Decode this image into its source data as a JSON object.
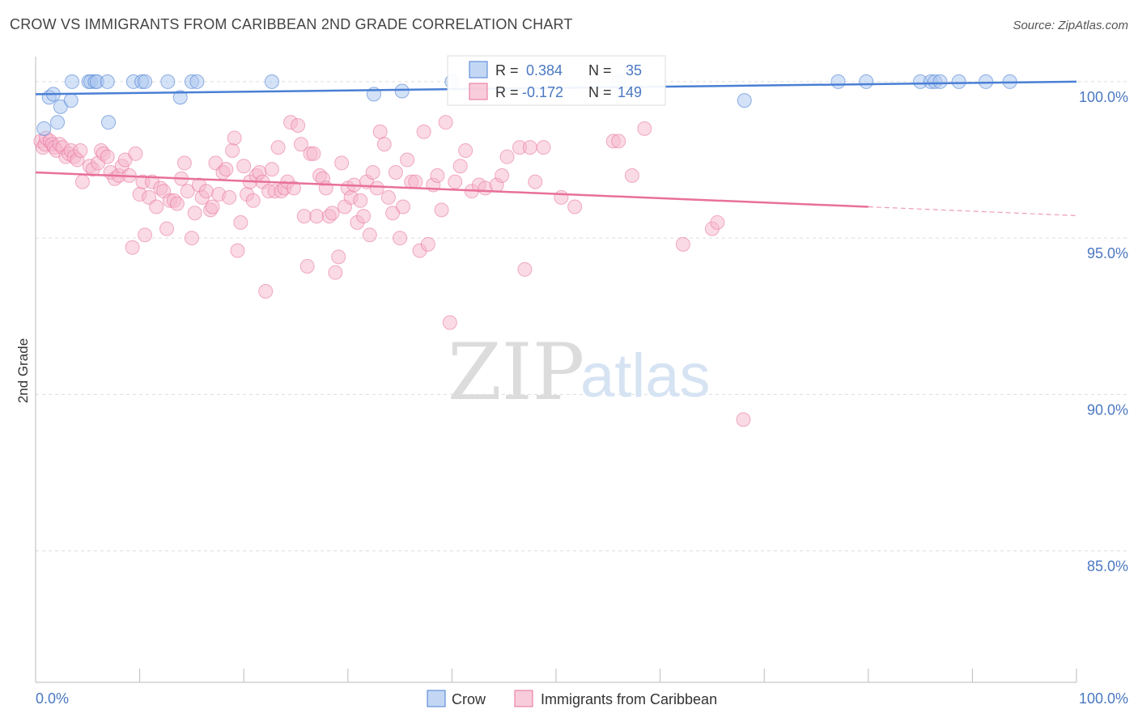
{
  "title": "CROW VS IMMIGRANTS FROM CARIBBEAN 2ND GRADE CORRELATION CHART",
  "source": "Source: ZipAtlas.com",
  "watermark": {
    "zip": "ZIP",
    "atlas": "atlas"
  },
  "colors": {
    "crow": "#4a7fd4",
    "crow_fill": "#a9c6ef",
    "caribbean": "#e8709a",
    "caribbean_fill": "#f5b6cc",
    "tick": "#4a78c2"
  },
  "stats": [
    {
      "r_label": "R =",
      "r": "0.384",
      "n_label": "N =",
      "n": "35"
    },
    {
      "r_label": "R =",
      "r": "-0.172",
      "n_label": "N =",
      "n": "149"
    }
  ],
  "chart_data": {
    "type": "scatter",
    "title": "CROW VS IMMIGRANTS FROM CARIBBEAN 2ND GRADE CORRELATION CHART",
    "xlabel": "",
    "ylabel": "2nd Grade",
    "xlim": [
      0,
      100
    ],
    "ylim": [
      80.8,
      100.8
    ],
    "x_tick_labels": [
      "0.0%",
      "100.0%"
    ],
    "y_ticks": [
      100,
      95,
      90,
      85
    ],
    "y_tick_labels": [
      "100.0%",
      "95.0%",
      "90.0%",
      "85.0%"
    ],
    "legend": [
      "Crow",
      "Immigrants from Caribbean"
    ],
    "series": [
      {
        "name": "Crow",
        "r": 0.384,
        "n": 35,
        "trend": {
          "x": [
            0,
            100
          ],
          "y": [
            99.6,
            100.0
          ]
        },
        "points": [
          [
            0.8,
            98.5
          ],
          [
            1.3,
            99.5
          ],
          [
            1.7,
            99.6
          ],
          [
            2.1,
            98.7
          ],
          [
            2.4,
            99.2
          ],
          [
            3.4,
            99.4
          ],
          [
            3.5,
            100.0
          ],
          [
            5.1,
            100.0
          ],
          [
            5.3,
            100.0
          ],
          [
            5.7,
            100.0
          ],
          [
            5.9,
            100.0
          ],
          [
            6.9,
            100.0
          ],
          [
            7.0,
            98.7
          ],
          [
            9.4,
            100.0
          ],
          [
            10.2,
            100.0
          ],
          [
            10.5,
            100.0
          ],
          [
            12.7,
            100.0
          ],
          [
            13.9,
            99.5
          ],
          [
            15.0,
            100.0
          ],
          [
            15.5,
            100.0
          ],
          [
            22.7,
            100.0
          ],
          [
            32.5,
            99.6
          ],
          [
            35.2,
            99.7
          ],
          [
            40.0,
            100.0
          ],
          [
            56.0,
            100.0
          ],
          [
            68.1,
            99.4
          ],
          [
            77.1,
            100.0
          ],
          [
            79.8,
            100.0
          ],
          [
            85.0,
            100.0
          ],
          [
            86.0,
            100.0
          ],
          [
            86.4,
            100.0
          ],
          [
            86.9,
            100.0
          ],
          [
            88.7,
            100.0
          ],
          [
            91.3,
            100.0
          ],
          [
            93.6,
            100.0
          ]
        ]
      },
      {
        "name": "Immigrants from Caribbean",
        "r": -0.172,
        "n": 149,
        "trend": {
          "x": [
            0,
            80
          ],
          "y": [
            97.1,
            96.0
          ]
        },
        "trend_dashed": {
          "x": [
            80,
            100
          ],
          "y": [
            96.0,
            95.72
          ]
        },
        "points": [
          [
            0.5,
            98.1
          ],
          [
            0.7,
            97.9
          ],
          [
            0.9,
            98.0
          ],
          [
            1.0,
            98.2
          ],
          [
            1.4,
            98.1
          ],
          [
            1.6,
            98.0
          ],
          [
            1.8,
            97.9
          ],
          [
            2.0,
            97.8
          ],
          [
            2.3,
            98.0
          ],
          [
            2.6,
            97.9
          ],
          [
            2.9,
            97.6
          ],
          [
            3.2,
            97.7
          ],
          [
            3.4,
            97.8
          ],
          [
            3.7,
            97.6
          ],
          [
            4.0,
            97.5
          ],
          [
            4.3,
            97.8
          ],
          [
            4.5,
            96.8
          ],
          [
            5.2,
            97.3
          ],
          [
            5.5,
            97.2
          ],
          [
            6.0,
            97.4
          ],
          [
            6.3,
            97.8
          ],
          [
            6.5,
            97.7
          ],
          [
            6.9,
            97.6
          ],
          [
            7.2,
            97.1
          ],
          [
            7.6,
            96.9
          ],
          [
            8.0,
            97.0
          ],
          [
            8.3,
            97.3
          ],
          [
            8.6,
            97.5
          ],
          [
            9.0,
            97.0
          ],
          [
            9.3,
            94.7
          ],
          [
            9.6,
            97.7
          ],
          [
            10.0,
            96.4
          ],
          [
            10.3,
            96.8
          ],
          [
            10.5,
            95.1
          ],
          [
            10.9,
            96.3
          ],
          [
            11.2,
            96.8
          ],
          [
            11.6,
            96.0
          ],
          [
            12.0,
            96.6
          ],
          [
            12.3,
            96.5
          ],
          [
            12.6,
            95.3
          ],
          [
            12.9,
            96.2
          ],
          [
            13.3,
            96.2
          ],
          [
            13.6,
            96.1
          ],
          [
            14.0,
            96.9
          ],
          [
            14.3,
            97.4
          ],
          [
            14.6,
            96.5
          ],
          [
            15.0,
            95.0
          ],
          [
            15.3,
            95.8
          ],
          [
            15.7,
            96.7
          ],
          [
            16.0,
            96.3
          ],
          [
            16.4,
            96.5
          ],
          [
            16.8,
            95.9
          ],
          [
            17.0,
            96.0
          ],
          [
            17.3,
            97.4
          ],
          [
            17.6,
            96.4
          ],
          [
            18.0,
            97.1
          ],
          [
            18.3,
            97.2
          ],
          [
            18.6,
            96.3
          ],
          [
            18.9,
            97.8
          ],
          [
            19.1,
            98.2
          ],
          [
            19.4,
            94.6
          ],
          [
            19.7,
            95.5
          ],
          [
            20.0,
            97.3
          ],
          [
            20.3,
            96.4
          ],
          [
            20.6,
            96.8
          ],
          [
            20.9,
            96.2
          ],
          [
            21.2,
            97.0
          ],
          [
            21.5,
            97.1
          ],
          [
            21.8,
            96.8
          ],
          [
            22.1,
            93.3
          ],
          [
            22.4,
            96.5
          ],
          [
            22.7,
            97.2
          ],
          [
            23.0,
            96.5
          ],
          [
            23.3,
            97.9
          ],
          [
            23.6,
            96.5
          ],
          [
            23.9,
            96.6
          ],
          [
            24.2,
            96.8
          ],
          [
            24.5,
            98.7
          ],
          [
            24.8,
            96.6
          ],
          [
            25.2,
            98.6
          ],
          [
            25.5,
            98.0
          ],
          [
            25.8,
            95.7
          ],
          [
            26.1,
            94.1
          ],
          [
            26.4,
            97.7
          ],
          [
            26.7,
            97.7
          ],
          [
            27.0,
            95.7
          ],
          [
            27.3,
            97.0
          ],
          [
            27.6,
            96.9
          ],
          [
            27.9,
            96.6
          ],
          [
            28.2,
            95.7
          ],
          [
            28.5,
            95.8
          ],
          [
            28.8,
            93.9
          ],
          [
            29.1,
            94.4
          ],
          [
            29.4,
            97.4
          ],
          [
            29.7,
            96.0
          ],
          [
            30.0,
            96.6
          ],
          [
            30.3,
            96.3
          ],
          [
            30.6,
            96.7
          ],
          [
            30.9,
            95.5
          ],
          [
            31.2,
            96.2
          ],
          [
            31.5,
            95.7
          ],
          [
            31.8,
            96.8
          ],
          [
            32.1,
            95.1
          ],
          [
            32.4,
            97.1
          ],
          [
            32.8,
            96.6
          ],
          [
            33.1,
            98.4
          ],
          [
            33.5,
            98.0
          ],
          [
            33.9,
            96.3
          ],
          [
            34.3,
            95.8
          ],
          [
            34.6,
            97.1
          ],
          [
            35.0,
            95.0
          ],
          [
            35.3,
            96.0
          ],
          [
            35.7,
            97.5
          ],
          [
            36.1,
            96.8
          ],
          [
            36.5,
            96.8
          ],
          [
            36.9,
            94.6
          ],
          [
            37.3,
            98.4
          ],
          [
            37.7,
            94.8
          ],
          [
            38.2,
            96.7
          ],
          [
            38.6,
            97.0
          ],
          [
            39.0,
            95.9
          ],
          [
            39.4,
            98.7
          ],
          [
            39.8,
            92.3
          ],
          [
            40.3,
            96.8
          ],
          [
            40.8,
            97.3
          ],
          [
            41.3,
            97.8
          ],
          [
            41.9,
            96.5
          ],
          [
            42.6,
            96.7
          ],
          [
            43.2,
            96.6
          ],
          [
            44.3,
            96.7
          ],
          [
            44.8,
            97.0
          ],
          [
            45.3,
            97.6
          ],
          [
            46.5,
            97.9
          ],
          [
            47.0,
            94.0
          ],
          [
            47.5,
            97.9
          ],
          [
            48.0,
            96.8
          ],
          [
            48.8,
            97.9
          ],
          [
            50.5,
            96.3
          ],
          [
            51.8,
            96.0
          ],
          [
            55.5,
            98.1
          ],
          [
            56.0,
            98.1
          ],
          [
            57.3,
            97.0
          ],
          [
            58.5,
            98.5
          ],
          [
            62.2,
            94.8
          ],
          [
            65.0,
            95.3
          ],
          [
            65.5,
            95.5
          ],
          [
            68.0,
            89.2
          ]
        ]
      }
    ]
  },
  "legend": {
    "crow": "Crow",
    "caribbean": "Immigrants from Caribbean"
  }
}
